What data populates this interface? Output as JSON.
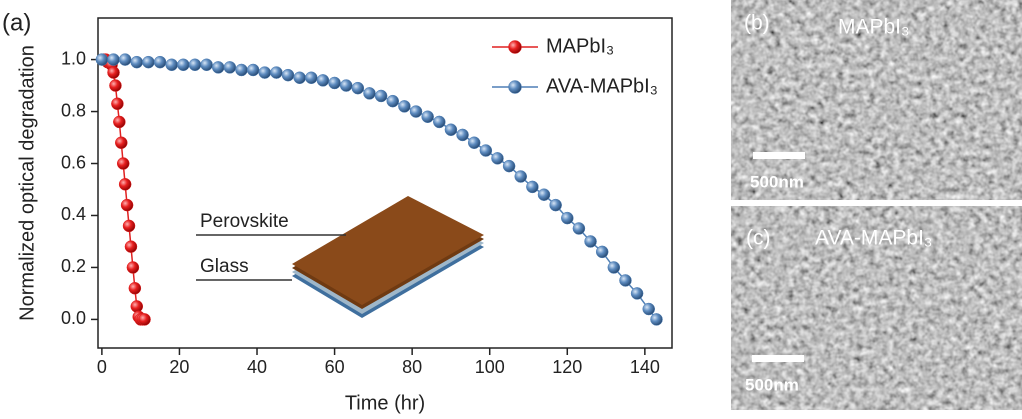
{
  "chart_data": {
    "type": "line",
    "panel_label": "(a)",
    "x_label": "Time (hr)",
    "y_label": "Normalized optical degradation",
    "inset_labels": [
      "Perovskite",
      "Glass"
    ],
    "xlim": [
      -1,
      147
    ],
    "ylim": [
      -0.11,
      1.16
    ],
    "xticks": [
      0,
      20,
      40,
      60,
      80,
      100,
      120,
      140
    ],
    "yticks": [
      {
        "value": 0,
        "label": "0.0"
      },
      0.2,
      0.4,
      0.6,
      0.8,
      {
        "value": 1,
        "label": "1.0"
      }
    ],
    "grid": false,
    "legend": "upper right",
    "series": [
      {
        "name": "MAPbI₃",
        "color": "#e02020",
        "x": [
          0.5,
          1,
          1.5,
          2,
          2.5,
          3,
          3.5,
          4,
          4.5,
          5,
          5.5,
          6,
          6.5,
          7,
          7.5,
          8,
          8.5,
          9,
          9.5,
          10,
          10.5,
          11
        ],
        "values": [
          1.0,
          1.0,
          0.99,
          0.99,
          0.98,
          0.95,
          0.9,
          0.83,
          0.76,
          0.68,
          0.6,
          0.52,
          0.44,
          0.36,
          0.28,
          0.2,
          0.12,
          0.05,
          0.01,
          0,
          0,
          0
        ]
      },
      {
        "name": "AVA-MAPbI₃",
        "color": "#4f7fb5",
        "x": [
          0,
          3,
          6,
          9,
          12,
          15,
          18,
          21,
          24,
          27,
          30,
          33,
          36,
          39,
          42,
          45,
          48,
          51,
          54,
          57,
          60,
          63,
          66,
          69,
          72,
          75,
          78,
          81,
          84,
          87,
          90,
          93,
          96,
          99,
          102,
          105,
          108,
          111,
          114,
          117,
          120,
          123,
          126,
          129,
          132,
          135,
          138,
          141,
          143
        ],
        "values": [
          1.0,
          1.0,
          1.0,
          0.99,
          0.99,
          0.99,
          0.98,
          0.98,
          0.98,
          0.98,
          0.97,
          0.97,
          0.96,
          0.96,
          0.95,
          0.95,
          0.94,
          0.93,
          0.93,
          0.92,
          0.91,
          0.9,
          0.89,
          0.87,
          0.86,
          0.84,
          0.82,
          0.8,
          0.78,
          0.76,
          0.73,
          0.71,
          0.68,
          0.65,
          0.62,
          0.59,
          0.55,
          0.51,
          0.48,
          0.44,
          0.39,
          0.35,
          0.3,
          0.26,
          0.2,
          0.15,
          0.1,
          0.04,
          0
        ]
      }
    ]
  },
  "images": [
    {
      "label": "(b)",
      "caption": "MAPbI₃",
      "scale_bar": "500nm"
    },
    {
      "label": "(c)",
      "caption": "AVA-MAPbI₃",
      "scale_bar": "500nm"
    }
  ]
}
